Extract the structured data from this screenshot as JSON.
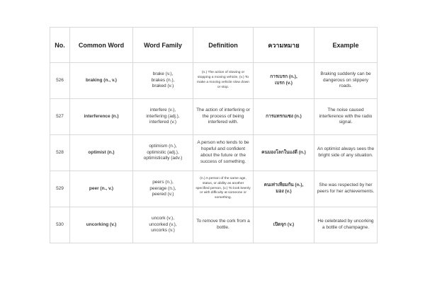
{
  "page": {
    "background": "#ffffff",
    "colors": {
      "border": "#d9d9d9",
      "body_text": "#3b3b3b",
      "header_text": "#222222",
      "bold_text": "#2d2d2d"
    }
  },
  "table": {
    "headers": [
      {
        "key": "no",
        "label": "No."
      },
      {
        "key": "common-word",
        "label": "Common Word"
      },
      {
        "key": "word-family",
        "label": "Word Family"
      },
      {
        "key": "definition",
        "label": "Definition"
      },
      {
        "key": "meaning",
        "label": "ความหมาย"
      },
      {
        "key": "example",
        "label": "Example"
      }
    ],
    "rows": [
      {
        "no": "526",
        "common_word": "braking (n., v.)",
        "word_family": [
          "brake (v.),",
          "brakes (n.),",
          "braked (v.)"
        ],
        "definition": "(n.) The action of slowing or stopping a moving vehicle, (v.) To make a moving vehicle slow down or stop.",
        "meaning": [
          "การเบรก (n.),",
          "เบรก (v.)"
        ],
        "example": "Braking suddenly can be dangerous on slippery roads."
      },
      {
        "no": "527",
        "common_word": "interference (n.)",
        "word_family": [
          "interfere (v.),",
          "interfering (adj.),",
          "interfered (v.)"
        ],
        "definition": "The action of interfering or the process of being interfered with.",
        "meaning": [
          "การแทรกแซง (n.)"
        ],
        "example": "The noise caused interference with the radio signal."
      },
      {
        "no": "528",
        "common_word": "optimist (n.)",
        "word_family": [
          "optimism (n.),",
          "optimistic (adj.),",
          "optimistically (adv.)"
        ],
        "definition": "A person who tends to be hopeful and confident about the future or the success of something.",
        "meaning": [
          "คนมองโลกในแง่ดี (n.)"
        ],
        "example": "An optimist always sees the bright side of any situation."
      },
      {
        "no": "529",
        "common_word": "peer (n., v.)",
        "word_family": [
          "peers (n.),",
          "peerage (n.),",
          "peered (v.)"
        ],
        "definition": "(n.) A person of the same age, status, or ability as another specified person, (v.) To look keenly or with difficulty at someone or something.",
        "meaning": [
          "คนเท่าเทียมกัน (n.),",
          "มอง (v.)"
        ],
        "example": "She was respected by her peers for her achievements."
      },
      {
        "no": "530",
        "common_word": "uncorking (v.)",
        "word_family": [
          "uncork (v.),",
          "uncorked (v.),",
          "uncorks (v.)"
        ],
        "definition": "To remove the cork from a bottle.",
        "meaning": [
          "เปิดจุก (v.)"
        ],
        "example": "He celebrated by uncorking a bottle of champagne."
      }
    ]
  }
}
